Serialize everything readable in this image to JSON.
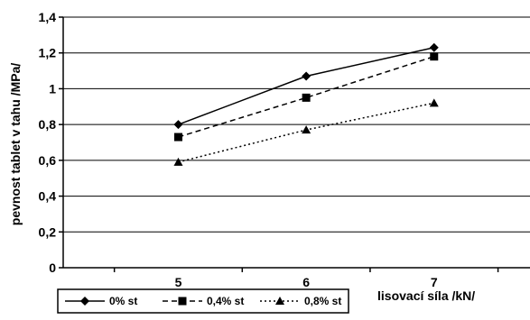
{
  "chart_data": {
    "type": "line",
    "title": "",
    "xlabel": "lisovací síla /kN/",
    "ylabel": "pevnost tablet v tahu /MPa/",
    "x": [
      5,
      6,
      7
    ],
    "x_tick_labels": [
      "5",
      "6",
      "7"
    ],
    "ylim": [
      0,
      1.4
    ],
    "y_ticks": [
      0,
      0.2,
      0.4,
      0.6,
      0.8,
      1,
      1.2,
      1.4
    ],
    "y_tick_labels": [
      "0",
      "0,2",
      "0,4",
      "0,6",
      "0,8",
      "1",
      "1,2",
      "1,4"
    ],
    "grid": true,
    "legend_position": "bottom-left",
    "series": [
      {
        "name": "0% st",
        "values": [
          0.8,
          1.07,
          1.23
        ],
        "marker": "diamond",
        "line": "solid"
      },
      {
        "name": "0,4% st",
        "values": [
          0.73,
          0.95,
          1.18
        ],
        "marker": "square",
        "line": "dashed"
      },
      {
        "name": "0,8% st",
        "values": [
          0.59,
          0.77,
          0.92
        ],
        "marker": "triangle",
        "line": "dotted"
      }
    ],
    "colors": {
      "line": "#000000",
      "grid": "#000000",
      "background": "#ffffff"
    }
  }
}
